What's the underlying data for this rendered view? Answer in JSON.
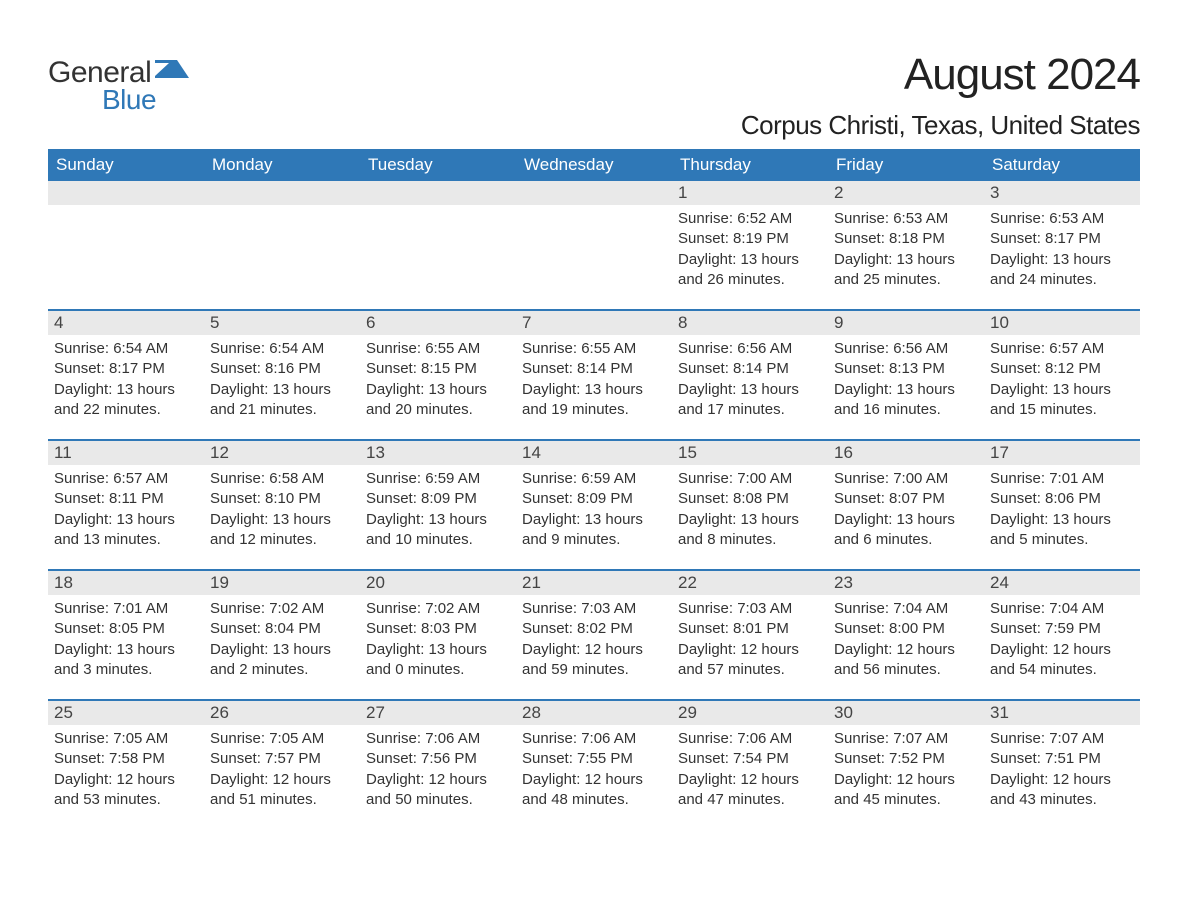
{
  "logo": {
    "text1": "General",
    "text2": "Blue",
    "accent_color": "#2f78b7"
  },
  "title": "August 2024",
  "location": "Corpus Christi, Texas, United States",
  "colors": {
    "header_bg": "#2f78b7",
    "header_text": "#ffffff",
    "daynum_bg": "#e9e9e9",
    "week_border": "#2f78b7",
    "body_text": "#333333",
    "background": "#ffffff"
  },
  "weekdays": [
    "Sunday",
    "Monday",
    "Tuesday",
    "Wednesday",
    "Thursday",
    "Friday",
    "Saturday"
  ],
  "weeks": [
    [
      {
        "day": "",
        "sunrise": "",
        "sunset": "",
        "daylight": ""
      },
      {
        "day": "",
        "sunrise": "",
        "sunset": "",
        "daylight": ""
      },
      {
        "day": "",
        "sunrise": "",
        "sunset": "",
        "daylight": ""
      },
      {
        "day": "",
        "sunrise": "",
        "sunset": "",
        "daylight": ""
      },
      {
        "day": "1",
        "sunrise": "Sunrise: 6:52 AM",
        "sunset": "Sunset: 8:19 PM",
        "daylight": "Daylight: 13 hours and 26 minutes."
      },
      {
        "day": "2",
        "sunrise": "Sunrise: 6:53 AM",
        "sunset": "Sunset: 8:18 PM",
        "daylight": "Daylight: 13 hours and 25 minutes."
      },
      {
        "day": "3",
        "sunrise": "Sunrise: 6:53 AM",
        "sunset": "Sunset: 8:17 PM",
        "daylight": "Daylight: 13 hours and 24 minutes."
      }
    ],
    [
      {
        "day": "4",
        "sunrise": "Sunrise: 6:54 AM",
        "sunset": "Sunset: 8:17 PM",
        "daylight": "Daylight: 13 hours and 22 minutes."
      },
      {
        "day": "5",
        "sunrise": "Sunrise: 6:54 AM",
        "sunset": "Sunset: 8:16 PM",
        "daylight": "Daylight: 13 hours and 21 minutes."
      },
      {
        "day": "6",
        "sunrise": "Sunrise: 6:55 AM",
        "sunset": "Sunset: 8:15 PM",
        "daylight": "Daylight: 13 hours and 20 minutes."
      },
      {
        "day": "7",
        "sunrise": "Sunrise: 6:55 AM",
        "sunset": "Sunset: 8:14 PM",
        "daylight": "Daylight: 13 hours and 19 minutes."
      },
      {
        "day": "8",
        "sunrise": "Sunrise: 6:56 AM",
        "sunset": "Sunset: 8:14 PM",
        "daylight": "Daylight: 13 hours and 17 minutes."
      },
      {
        "day": "9",
        "sunrise": "Sunrise: 6:56 AM",
        "sunset": "Sunset: 8:13 PM",
        "daylight": "Daylight: 13 hours and 16 minutes."
      },
      {
        "day": "10",
        "sunrise": "Sunrise: 6:57 AM",
        "sunset": "Sunset: 8:12 PM",
        "daylight": "Daylight: 13 hours and 15 minutes."
      }
    ],
    [
      {
        "day": "11",
        "sunrise": "Sunrise: 6:57 AM",
        "sunset": "Sunset: 8:11 PM",
        "daylight": "Daylight: 13 hours and 13 minutes."
      },
      {
        "day": "12",
        "sunrise": "Sunrise: 6:58 AM",
        "sunset": "Sunset: 8:10 PM",
        "daylight": "Daylight: 13 hours and 12 minutes."
      },
      {
        "day": "13",
        "sunrise": "Sunrise: 6:59 AM",
        "sunset": "Sunset: 8:09 PM",
        "daylight": "Daylight: 13 hours and 10 minutes."
      },
      {
        "day": "14",
        "sunrise": "Sunrise: 6:59 AM",
        "sunset": "Sunset: 8:09 PM",
        "daylight": "Daylight: 13 hours and 9 minutes."
      },
      {
        "day": "15",
        "sunrise": "Sunrise: 7:00 AM",
        "sunset": "Sunset: 8:08 PM",
        "daylight": "Daylight: 13 hours and 8 minutes."
      },
      {
        "day": "16",
        "sunrise": "Sunrise: 7:00 AM",
        "sunset": "Sunset: 8:07 PM",
        "daylight": "Daylight: 13 hours and 6 minutes."
      },
      {
        "day": "17",
        "sunrise": "Sunrise: 7:01 AM",
        "sunset": "Sunset: 8:06 PM",
        "daylight": "Daylight: 13 hours and 5 minutes."
      }
    ],
    [
      {
        "day": "18",
        "sunrise": "Sunrise: 7:01 AM",
        "sunset": "Sunset: 8:05 PM",
        "daylight": "Daylight: 13 hours and 3 minutes."
      },
      {
        "day": "19",
        "sunrise": "Sunrise: 7:02 AM",
        "sunset": "Sunset: 8:04 PM",
        "daylight": "Daylight: 13 hours and 2 minutes."
      },
      {
        "day": "20",
        "sunrise": "Sunrise: 7:02 AM",
        "sunset": "Sunset: 8:03 PM",
        "daylight": "Daylight: 13 hours and 0 minutes."
      },
      {
        "day": "21",
        "sunrise": "Sunrise: 7:03 AM",
        "sunset": "Sunset: 8:02 PM",
        "daylight": "Daylight: 12 hours and 59 minutes."
      },
      {
        "day": "22",
        "sunrise": "Sunrise: 7:03 AM",
        "sunset": "Sunset: 8:01 PM",
        "daylight": "Daylight: 12 hours and 57 minutes."
      },
      {
        "day": "23",
        "sunrise": "Sunrise: 7:04 AM",
        "sunset": "Sunset: 8:00 PM",
        "daylight": "Daylight: 12 hours and 56 minutes."
      },
      {
        "day": "24",
        "sunrise": "Sunrise: 7:04 AM",
        "sunset": "Sunset: 7:59 PM",
        "daylight": "Daylight: 12 hours and 54 minutes."
      }
    ],
    [
      {
        "day": "25",
        "sunrise": "Sunrise: 7:05 AM",
        "sunset": "Sunset: 7:58 PM",
        "daylight": "Daylight: 12 hours and 53 minutes."
      },
      {
        "day": "26",
        "sunrise": "Sunrise: 7:05 AM",
        "sunset": "Sunset: 7:57 PM",
        "daylight": "Daylight: 12 hours and 51 minutes."
      },
      {
        "day": "27",
        "sunrise": "Sunrise: 7:06 AM",
        "sunset": "Sunset: 7:56 PM",
        "daylight": "Daylight: 12 hours and 50 minutes."
      },
      {
        "day": "28",
        "sunrise": "Sunrise: 7:06 AM",
        "sunset": "Sunset: 7:55 PM",
        "daylight": "Daylight: 12 hours and 48 minutes."
      },
      {
        "day": "29",
        "sunrise": "Sunrise: 7:06 AM",
        "sunset": "Sunset: 7:54 PM",
        "daylight": "Daylight: 12 hours and 47 minutes."
      },
      {
        "day": "30",
        "sunrise": "Sunrise: 7:07 AM",
        "sunset": "Sunset: 7:52 PM",
        "daylight": "Daylight: 12 hours and 45 minutes."
      },
      {
        "day": "31",
        "sunrise": "Sunrise: 7:07 AM",
        "sunset": "Sunset: 7:51 PM",
        "daylight": "Daylight: 12 hours and 43 minutes."
      }
    ]
  ]
}
